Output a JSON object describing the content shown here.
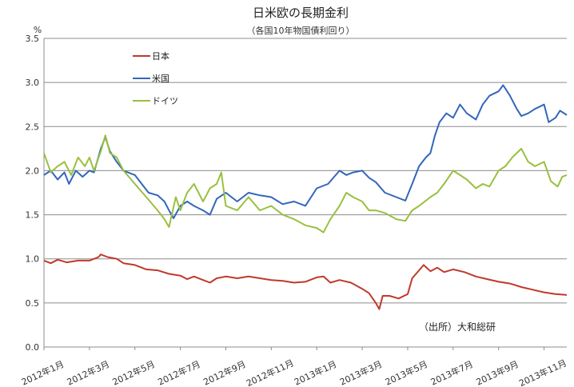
{
  "chart_data": {
    "type": "line",
    "title": "日米欧の長期金利",
    "subtitle": "（各国10年物国債利回り）",
    "ylabel": "%",
    "xlabel": "",
    "ylim": [
      0.0,
      3.5
    ],
    "yticks": [
      "0.0",
      "0.5",
      "1.0",
      "1.5",
      "2.0",
      "2.5",
      "3.0",
      "3.5"
    ],
    "xlim": [
      0,
      23
    ],
    "xticks": [
      {
        "x": 0,
        "label": "2012年1月"
      },
      {
        "x": 2,
        "label": "2012年3月"
      },
      {
        "x": 4,
        "label": "2012年5月"
      },
      {
        "x": 6,
        "label": "2012年7月"
      },
      {
        "x": 8,
        "label": "2012年9月"
      },
      {
        "x": 10,
        "label": "2012年11月"
      },
      {
        "x": 12,
        "label": "2013年1月"
      },
      {
        "x": 14,
        "label": "2013年3月"
      },
      {
        "x": 16,
        "label": "2013年5月"
      },
      {
        "x": 18,
        "label": "2013年7月"
      },
      {
        "x": 20,
        "label": "2013年9月"
      },
      {
        "x": 22,
        "label": "2013年11月"
      }
    ],
    "grid": true,
    "legend": "top-left",
    "annotation": "（出所）大和総研",
    "series": [
      {
        "name": "日本",
        "color": "#c0392b",
        "points": [
          [
            0,
            0.98
          ],
          [
            0.3,
            0.95
          ],
          [
            0.6,
            0.99
          ],
          [
            1.0,
            0.96
          ],
          [
            1.5,
            0.98
          ],
          [
            2.0,
            0.98
          ],
          [
            2.4,
            1.02
          ],
          [
            2.5,
            1.05
          ],
          [
            2.8,
            1.02
          ],
          [
            3.2,
            1.0
          ],
          [
            3.5,
            0.95
          ],
          [
            4.0,
            0.93
          ],
          [
            4.5,
            0.88
          ],
          [
            5.0,
            0.87
          ],
          [
            5.5,
            0.83
          ],
          [
            6.0,
            0.81
          ],
          [
            6.3,
            0.77
          ],
          [
            6.6,
            0.8
          ],
          [
            7.0,
            0.76
          ],
          [
            7.3,
            0.73
          ],
          [
            7.6,
            0.78
          ],
          [
            8.0,
            0.8
          ],
          [
            8.5,
            0.78
          ],
          [
            9.0,
            0.8
          ],
          [
            9.5,
            0.78
          ],
          [
            10.0,
            0.76
          ],
          [
            10.5,
            0.75
          ],
          [
            11.0,
            0.73
          ],
          [
            11.5,
            0.74
          ],
          [
            12.0,
            0.79
          ],
          [
            12.3,
            0.8
          ],
          [
            12.6,
            0.73
          ],
          [
            13.0,
            0.76
          ],
          [
            13.5,
            0.73
          ],
          [
            14.0,
            0.66
          ],
          [
            14.3,
            0.61
          ],
          [
            14.6,
            0.5
          ],
          [
            14.75,
            0.43
          ],
          [
            14.9,
            0.58
          ],
          [
            15.2,
            0.58
          ],
          [
            15.6,
            0.55
          ],
          [
            16.0,
            0.6
          ],
          [
            16.2,
            0.78
          ],
          [
            16.5,
            0.87
          ],
          [
            16.7,
            0.93
          ],
          [
            17.0,
            0.86
          ],
          [
            17.3,
            0.9
          ],
          [
            17.6,
            0.85
          ],
          [
            18.0,
            0.88
          ],
          [
            18.5,
            0.85
          ],
          [
            19.0,
            0.8
          ],
          [
            19.5,
            0.77
          ],
          [
            20.0,
            0.74
          ],
          [
            20.5,
            0.72
          ],
          [
            21.0,
            0.68
          ],
          [
            21.5,
            0.65
          ],
          [
            22.0,
            0.62
          ],
          [
            22.5,
            0.6
          ],
          [
            23.0,
            0.59
          ]
        ]
      },
      {
        "name": "米国",
        "color": "#3366bb",
        "points": [
          [
            0,
            1.95
          ],
          [
            0.3,
            2.0
          ],
          [
            0.6,
            1.9
          ],
          [
            0.9,
            1.98
          ],
          [
            1.1,
            1.85
          ],
          [
            1.4,
            2.0
          ],
          [
            1.7,
            1.93
          ],
          [
            2.0,
            2.0
          ],
          [
            2.2,
            1.98
          ],
          [
            2.5,
            2.25
          ],
          [
            2.7,
            2.38
          ],
          [
            2.9,
            2.22
          ],
          [
            3.2,
            2.1
          ],
          [
            3.5,
            2.0
          ],
          [
            4.0,
            1.95
          ],
          [
            4.3,
            1.85
          ],
          [
            4.6,
            1.75
          ],
          [
            5.0,
            1.72
          ],
          [
            5.3,
            1.65
          ],
          [
            5.5,
            1.55
          ],
          [
            5.7,
            1.46
          ],
          [
            6.0,
            1.6
          ],
          [
            6.3,
            1.65
          ],
          [
            6.6,
            1.6
          ],
          [
            7.0,
            1.55
          ],
          [
            7.3,
            1.5
          ],
          [
            7.6,
            1.68
          ],
          [
            8.0,
            1.75
          ],
          [
            8.5,
            1.65
          ],
          [
            9.0,
            1.75
          ],
          [
            9.5,
            1.72
          ],
          [
            10.0,
            1.7
          ],
          [
            10.5,
            1.62
          ],
          [
            11.0,
            1.65
          ],
          [
            11.5,
            1.6
          ],
          [
            12.0,
            1.8
          ],
          [
            12.5,
            1.85
          ],
          [
            13.0,
            2.0
          ],
          [
            13.3,
            1.95
          ],
          [
            13.6,
            1.98
          ],
          [
            14.0,
            2.0
          ],
          [
            14.3,
            1.92
          ],
          [
            14.6,
            1.87
          ],
          [
            15.0,
            1.75
          ],
          [
            15.5,
            1.7
          ],
          [
            15.9,
            1.66
          ],
          [
            16.2,
            1.85
          ],
          [
            16.5,
            2.05
          ],
          [
            16.8,
            2.15
          ],
          [
            17.0,
            2.2
          ],
          [
            17.2,
            2.4
          ],
          [
            17.4,
            2.55
          ],
          [
            17.7,
            2.65
          ],
          [
            18.0,
            2.6
          ],
          [
            18.3,
            2.75
          ],
          [
            18.6,
            2.65
          ],
          [
            19.0,
            2.58
          ],
          [
            19.3,
            2.75
          ],
          [
            19.6,
            2.85
          ],
          [
            20.0,
            2.9
          ],
          [
            20.2,
            2.97
          ],
          [
            20.5,
            2.85
          ],
          [
            20.8,
            2.7
          ],
          [
            21.0,
            2.62
          ],
          [
            21.3,
            2.65
          ],
          [
            21.6,
            2.7
          ],
          [
            22.0,
            2.75
          ],
          [
            22.2,
            2.55
          ],
          [
            22.5,
            2.6
          ],
          [
            22.7,
            2.68
          ],
          [
            23.0,
            2.63
          ]
        ]
      },
      {
        "name": "ドイツ",
        "color": "#99c040",
        "points": [
          [
            0,
            2.2
          ],
          [
            0.3,
            1.98
          ],
          [
            0.6,
            2.05
          ],
          [
            0.9,
            2.1
          ],
          [
            1.2,
            1.95
          ],
          [
            1.5,
            2.15
          ],
          [
            1.8,
            2.05
          ],
          [
            2.0,
            2.15
          ],
          [
            2.2,
            2.0
          ],
          [
            2.5,
            2.22
          ],
          [
            2.7,
            2.4
          ],
          [
            2.9,
            2.2
          ],
          [
            3.2,
            2.15
          ],
          [
            3.5,
            2.0
          ],
          [
            4.0,
            1.85
          ],
          [
            4.5,
            1.7
          ],
          [
            5.0,
            1.55
          ],
          [
            5.3,
            1.45
          ],
          [
            5.5,
            1.36
          ],
          [
            5.8,
            1.7
          ],
          [
            6.0,
            1.55
          ],
          [
            6.3,
            1.75
          ],
          [
            6.6,
            1.85
          ],
          [
            7.0,
            1.65
          ],
          [
            7.3,
            1.8
          ],
          [
            7.6,
            1.85
          ],
          [
            7.8,
            1.98
          ],
          [
            8.0,
            1.6
          ],
          [
            8.5,
            1.55
          ],
          [
            9.0,
            1.7
          ],
          [
            9.5,
            1.55
          ],
          [
            10.0,
            1.6
          ],
          [
            10.5,
            1.5
          ],
          [
            11.0,
            1.45
          ],
          [
            11.5,
            1.38
          ],
          [
            12.0,
            1.35
          ],
          [
            12.3,
            1.3
          ],
          [
            12.6,
            1.45
          ],
          [
            13.0,
            1.6
          ],
          [
            13.3,
            1.75
          ],
          [
            13.6,
            1.7
          ],
          [
            14.0,
            1.65
          ],
          [
            14.3,
            1.55
          ],
          [
            14.6,
            1.55
          ],
          [
            15.0,
            1.52
          ],
          [
            15.5,
            1.45
          ],
          [
            15.9,
            1.43
          ],
          [
            16.2,
            1.55
          ],
          [
            16.5,
            1.6
          ],
          [
            17.0,
            1.7
          ],
          [
            17.3,
            1.75
          ],
          [
            17.6,
            1.85
          ],
          [
            18.0,
            2.0
          ],
          [
            18.3,
            1.95
          ],
          [
            18.6,
            1.9
          ],
          [
            19.0,
            1.8
          ],
          [
            19.3,
            1.85
          ],
          [
            19.6,
            1.82
          ],
          [
            20.0,
            2.0
          ],
          [
            20.3,
            2.05
          ],
          [
            20.6,
            2.15
          ],
          [
            21.0,
            2.25
          ],
          [
            21.3,
            2.1
          ],
          [
            21.6,
            2.05
          ],
          [
            22.0,
            2.1
          ],
          [
            22.3,
            1.88
          ],
          [
            22.6,
            1.82
          ],
          [
            22.8,
            1.93
          ],
          [
            23.0,
            1.95
          ]
        ]
      }
    ]
  }
}
